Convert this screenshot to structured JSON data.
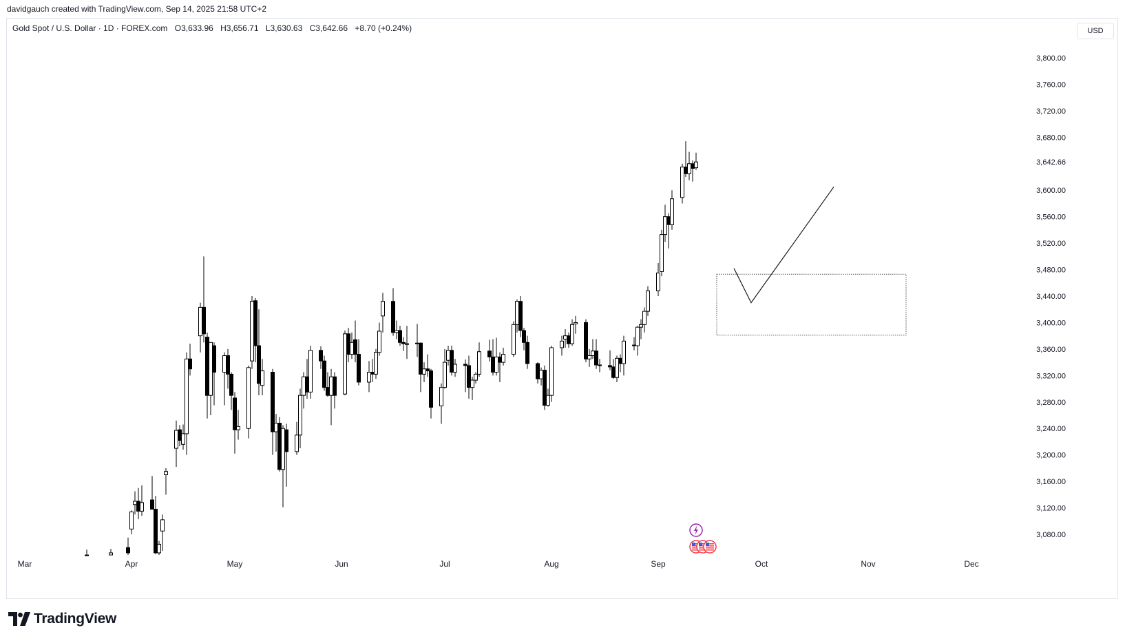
{
  "caption": "davidgauch created with TradingView.com, Sep 14, 2025 21:58 UTC+2",
  "legend": {
    "symbol": "Gold Spot / U.S. Dollar · 1D · FOREX.com",
    "open": "O3,633.96",
    "high": "H3,656.71",
    "low": "L3,630.63",
    "close": "C3,642.66",
    "change": "+8.70 (+0.24%)"
  },
  "currency_button": "USD",
  "logo_text": "TradingView",
  "icons": [
    "lightning-icon",
    "us-flag-icon"
  ],
  "colors": {
    "candle": "#000000",
    "grid_border": "#e0e3eb",
    "event_purple": "#9c27b0",
    "event_red": "#f23645"
  },
  "chart_data": {
    "type": "candlestick",
    "ylim": [
      3050,
      3830
    ],
    "y_ticks": [
      "3,080.00",
      "3,120.00",
      "3,160.00",
      "3,200.00",
      "3,240.00",
      "3,280.00",
      "3,320.00",
      "3,360.00",
      "3,400.00",
      "3,440.00",
      "3,480.00",
      "3,520.00",
      "3,560.00",
      "3,600.00",
      "3,680.00",
      "3,720.00",
      "3,760.00",
      "3,800.00"
    ],
    "y_tick_values": [
      3080,
      3120,
      3160,
      3200,
      3240,
      3280,
      3320,
      3360,
      3400,
      3440,
      3480,
      3520,
      3560,
      3600,
      3680,
      3720,
      3760,
      3800
    ],
    "last_price_label": "3,642.66",
    "last_price": 3642.66,
    "x_ticks": [
      {
        "label": "Mar",
        "date": "2025-03-01"
      },
      {
        "label": "Apr",
        "date": "2025-04-01"
      },
      {
        "label": "May",
        "date": "2025-05-01"
      },
      {
        "label": "Jun",
        "date": "2025-06-01"
      },
      {
        "label": "Jul",
        "date": "2025-07-01"
      },
      {
        "label": "Aug",
        "date": "2025-08-01"
      },
      {
        "label": "Sep",
        "date": "2025-09-01"
      },
      {
        "label": "Oct",
        "date": "2025-10-01"
      },
      {
        "label": "Nov",
        "date": "2025-11-01"
      },
      {
        "label": "Dec",
        "date": "2025-12-01"
      }
    ],
    "candles": [
      {
        "date": "2025-03-19",
        "o": 3033,
        "h": 3057,
        "l": 3030,
        "c": 3048
      },
      {
        "date": "2025-03-26",
        "o": 3028,
        "h": 3058,
        "l": 3025,
        "c": 3052
      },
      {
        "date": "2025-03-31",
        "o": 3060,
        "h": 3075,
        "l": 3045,
        "c": 3052
      },
      {
        "date": "2025-04-01",
        "o": 3088,
        "h": 3116,
        "l": 3080,
        "c": 3114
      },
      {
        "date": "2025-04-02",
        "o": 3125,
        "h": 3145,
        "l": 3110,
        "c": 3130
      },
      {
        "date": "2025-04-03",
        "o": 3130,
        "h": 3150,
        "l": 3103,
        "c": 3115
      },
      {
        "date": "2025-04-04",
        "o": 3115,
        "h": 3154,
        "l": 3108,
        "c": 3128
      },
      {
        "date": "2025-04-07",
        "o": 3132,
        "h": 3168,
        "l": 3120,
        "c": 3118
      },
      {
        "date": "2025-04-08",
        "o": 3118,
        "h": 3138,
        "l": 3050,
        "c": 3052
      },
      {
        "date": "2025-04-09",
        "o": 3052,
        "h": 3070,
        "l": 3040,
        "c": 3065
      },
      {
        "date": "2025-04-10",
        "o": 3085,
        "h": 3110,
        "l": 3055,
        "c": 3102
      },
      {
        "date": "2025-04-11",
        "o": 3170,
        "h": 3180,
        "l": 3140,
        "c": 3175
      },
      {
        "date": "2025-04-14",
        "o": 3210,
        "h": 3252,
        "l": 3182,
        "c": 3237
      },
      {
        "date": "2025-04-15",
        "o": 3238,
        "h": 3245,
        "l": 3213,
        "c": 3222
      },
      {
        "date": "2025-04-16",
        "o": 3216,
        "h": 3246,
        "l": 3208,
        "c": 3232
      },
      {
        "date": "2025-04-17",
        "o": 3232,
        "h": 3355,
        "l": 3200,
        "c": 3345
      },
      {
        "date": "2025-04-18",
        "o": 3345,
        "h": 3368,
        "l": 3320,
        "c": 3330
      },
      {
        "date": "2025-04-21",
        "o": 3380,
        "h": 3430,
        "l": 3355,
        "c": 3423
      },
      {
        "date": "2025-04-22",
        "o": 3423,
        "h": 3500,
        "l": 3370,
        "c": 3383
      },
      {
        "date": "2025-04-23",
        "o": 3378,
        "h": 3385,
        "l": 3255,
        "c": 3290
      },
      {
        "date": "2025-04-24",
        "o": 3290,
        "h": 3370,
        "l": 3260,
        "c": 3370
      },
      {
        "date": "2025-04-25",
        "o": 3365,
        "h": 3370,
        "l": 3275,
        "c": 3325
      },
      {
        "date": "2025-04-28",
        "o": 3325,
        "h": 3355,
        "l": 3275,
        "c": 3350
      },
      {
        "date": "2025-04-29",
        "o": 3350,
        "h": 3360,
        "l": 3300,
        "c": 3322
      },
      {
        "date": "2025-04-30",
        "o": 3322,
        "h": 3325,
        "l": 3268,
        "c": 3290
      },
      {
        "date": "2025-05-01",
        "o": 3286,
        "h": 3295,
        "l": 3202,
        "c": 3238
      },
      {
        "date": "2025-05-02",
        "o": 3238,
        "h": 3268,
        "l": 3223,
        "c": 3243
      },
      {
        "date": "2025-05-05",
        "o": 3240,
        "h": 3335,
        "l": 3225,
        "c": 3332
      },
      {
        "date": "2025-05-06",
        "o": 3342,
        "h": 3440,
        "l": 3330,
        "c": 3432
      },
      {
        "date": "2025-05-07",
        "o": 3433,
        "h": 3437,
        "l": 3340,
        "c": 3365
      },
      {
        "date": "2025-05-08",
        "o": 3365,
        "h": 3420,
        "l": 3290,
        "c": 3308
      },
      {
        "date": "2025-05-09",
        "o": 3305,
        "h": 3345,
        "l": 3290,
        "c": 3327
      },
      {
        "date": "2025-05-12",
        "o": 3325,
        "h": 3330,
        "l": 3200,
        "c": 3235
      },
      {
        "date": "2025-05-13",
        "o": 3235,
        "h": 3262,
        "l": 3205,
        "c": 3248
      },
      {
        "date": "2025-05-14",
        "o": 3248,
        "h": 3257,
        "l": 3175,
        "c": 3178
      },
      {
        "date": "2025-05-15",
        "o": 3178,
        "h": 3245,
        "l": 3121,
        "c": 3240
      },
      {
        "date": "2025-05-16",
        "o": 3238,
        "h": 3247,
        "l": 3152,
        "c": 3205
      },
      {
        "date": "2025-05-19",
        "o": 3205,
        "h": 3250,
        "l": 3200,
        "c": 3230
      },
      {
        "date": "2025-05-20",
        "o": 3230,
        "h": 3300,
        "l": 3210,
        "c": 3290
      },
      {
        "date": "2025-05-21",
        "o": 3290,
        "h": 3325,
        "l": 3270,
        "c": 3318
      },
      {
        "date": "2025-05-22",
        "o": 3318,
        "h": 3345,
        "l": 3285,
        "c": 3295
      },
      {
        "date": "2025-05-23",
        "o": 3295,
        "h": 3365,
        "l": 3285,
        "c": 3358
      },
      {
        "date": "2025-05-26",
        "o": 3358,
        "h": 3364,
        "l": 3330,
        "c": 3342
      },
      {
        "date": "2025-05-27",
        "o": 3342,
        "h": 3350,
        "l": 3297,
        "c": 3302
      },
      {
        "date": "2025-05-28",
        "o": 3302,
        "h": 3325,
        "l": 3288,
        "c": 3290
      },
      {
        "date": "2025-05-29",
        "o": 3290,
        "h": 3330,
        "l": 3245,
        "c": 3318
      },
      {
        "date": "2025-05-30",
        "o": 3318,
        "h": 3325,
        "l": 3270,
        "c": 3290
      },
      {
        "date": "2025-06-02",
        "o": 3292,
        "h": 3388,
        "l": 3290,
        "c": 3383
      },
      {
        "date": "2025-06-03",
        "o": 3383,
        "h": 3392,
        "l": 3340,
        "c": 3352
      },
      {
        "date": "2025-06-04",
        "o": 3352,
        "h": 3385,
        "l": 3345,
        "c": 3370
      },
      {
        "date": "2025-06-05",
        "o": 3374,
        "h": 3403,
        "l": 3340,
        "c": 3352
      },
      {
        "date": "2025-06-06",
        "o": 3352,
        "h": 3375,
        "l": 3305,
        "c": 3310
      },
      {
        "date": "2025-06-09",
        "o": 3310,
        "h": 3342,
        "l": 3295,
        "c": 3325
      },
      {
        "date": "2025-06-10",
        "o": 3325,
        "h": 3345,
        "l": 3310,
        "c": 3322
      },
      {
        "date": "2025-06-11",
        "o": 3322,
        "h": 3360,
        "l": 3315,
        "c": 3355
      },
      {
        "date": "2025-06-12",
        "o": 3355,
        "h": 3400,
        "l": 3350,
        "c": 3387
      },
      {
        "date": "2025-06-13",
        "o": 3410,
        "h": 3445,
        "l": 3385,
        "c": 3432
      },
      {
        "date": "2025-06-16",
        "o": 3432,
        "h": 3452,
        "l": 3380,
        "c": 3385
      },
      {
        "date": "2025-06-17",
        "o": 3385,
        "h": 3403,
        "l": 3375,
        "c": 3388
      },
      {
        "date": "2025-06-18",
        "o": 3388,
        "h": 3395,
        "l": 3365,
        "c": 3370
      },
      {
        "date": "2025-06-19",
        "o": 3370,
        "h": 3378,
        "l": 3357,
        "c": 3368
      },
      {
        "date": "2025-06-20",
        "o": 3368,
        "h": 3395,
        "l": 3345,
        "c": 3368
      },
      {
        "date": "2025-06-23",
        "o": 3368,
        "h": 3398,
        "l": 3348,
        "c": 3369
      },
      {
        "date": "2025-06-24",
        "o": 3369,
        "h": 3370,
        "l": 3295,
        "c": 3322
      },
      {
        "date": "2025-06-25",
        "o": 3322,
        "h": 3340,
        "l": 3310,
        "c": 3330
      },
      {
        "date": "2025-06-26",
        "o": 3330,
        "h": 3352,
        "l": 3318,
        "c": 3327
      },
      {
        "date": "2025-06-27",
        "o": 3327,
        "h": 3330,
        "l": 3255,
        "c": 3272
      },
      {
        "date": "2025-06-30",
        "o": 3274,
        "h": 3308,
        "l": 3247,
        "c": 3302
      },
      {
        "date": "2025-07-01",
        "o": 3302,
        "h": 3360,
        "l": 3300,
        "c": 3340
      },
      {
        "date": "2025-07-02",
        "o": 3343,
        "h": 3365,
        "l": 3335,
        "c": 3358
      },
      {
        "date": "2025-07-03",
        "o": 3358,
        "h": 3365,
        "l": 3320,
        "c": 3325
      },
      {
        "date": "2025-07-04",
        "o": 3325,
        "h": 3345,
        "l": 3318,
        "c": 3337
      },
      {
        "date": "2025-07-07",
        "o": 3337,
        "h": 3344,
        "l": 3295,
        "c": 3335
      },
      {
        "date": "2025-07-08",
        "o": 3335,
        "h": 3350,
        "l": 3285,
        "c": 3302
      },
      {
        "date": "2025-07-09",
        "o": 3302,
        "h": 3318,
        "l": 3283,
        "c": 3313
      },
      {
        "date": "2025-07-10",
        "o": 3313,
        "h": 3325,
        "l": 3308,
        "c": 3322
      },
      {
        "date": "2025-07-11",
        "o": 3322,
        "h": 3370,
        "l": 3318,
        "c": 3356
      },
      {
        "date": "2025-07-14",
        "o": 3357,
        "h": 3374,
        "l": 3341,
        "c": 3348
      },
      {
        "date": "2025-07-15",
        "o": 3348,
        "h": 3375,
        "l": 3320,
        "c": 3325
      },
      {
        "date": "2025-07-16",
        "o": 3325,
        "h": 3377,
        "l": 3320,
        "c": 3348
      },
      {
        "date": "2025-07-17",
        "o": 3348,
        "h": 3355,
        "l": 3310,
        "c": 3340
      },
      {
        "date": "2025-07-18",
        "o": 3340,
        "h": 3362,
        "l": 3335,
        "c": 3352
      },
      {
        "date": "2025-07-21",
        "o": 3352,
        "h": 3402,
        "l": 3348,
        "c": 3397
      },
      {
        "date": "2025-07-22",
        "o": 3397,
        "h": 3435,
        "l": 3385,
        "c": 3432
      },
      {
        "date": "2025-07-23",
        "o": 3432,
        "h": 3440,
        "l": 3378,
        "c": 3388
      },
      {
        "date": "2025-07-24",
        "o": 3388,
        "h": 3392,
        "l": 3358,
        "c": 3370
      },
      {
        "date": "2025-07-25",
        "o": 3370,
        "h": 3380,
        "l": 3330,
        "c": 3338
      },
      {
        "date": "2025-07-28",
        "o": 3338,
        "h": 3340,
        "l": 3308,
        "c": 3315
      },
      {
        "date": "2025-07-29",
        "o": 3315,
        "h": 3332,
        "l": 3305,
        "c": 3328
      },
      {
        "date": "2025-07-30",
        "o": 3328,
        "h": 3335,
        "l": 3268,
        "c": 3275
      },
      {
        "date": "2025-07-31",
        "o": 3275,
        "h": 3300,
        "l": 3273,
        "c": 3290
      },
      {
        "date": "2025-08-01",
        "o": 3290,
        "h": 3365,
        "l": 3280,
        "c": 3362
      },
      {
        "date": "2025-08-04",
        "o": 3362,
        "h": 3380,
        "l": 3350,
        "c": 3372
      },
      {
        "date": "2025-08-05",
        "o": 3375,
        "h": 3390,
        "l": 3362,
        "c": 3380
      },
      {
        "date": "2025-08-06",
        "o": 3380,
        "h": 3385,
        "l": 3362,
        "c": 3368
      },
      {
        "date": "2025-08-07",
        "o": 3368,
        "h": 3405,
        "l": 3365,
        "c": 3397
      },
      {
        "date": "2025-08-08",
        "o": 3398,
        "h": 3410,
        "l": 3383,
        "c": 3400
      },
      {
        "date": "2025-08-11",
        "o": 3400,
        "h": 3405,
        "l": 3340,
        "c": 3345
      },
      {
        "date": "2025-08-12",
        "o": 3345,
        "h": 3360,
        "l": 3333,
        "c": 3350
      },
      {
        "date": "2025-08-13",
        "o": 3350,
        "h": 3375,
        "l": 3345,
        "c": 3357
      },
      {
        "date": "2025-08-14",
        "o": 3357,
        "h": 3375,
        "l": 3330,
        "c": 3336
      },
      {
        "date": "2025-08-15",
        "o": 3336,
        "h": 3345,
        "l": 3325,
        "c": 3335
      },
      {
        "date": "2025-08-18",
        "o": 3335,
        "h": 3358,
        "l": 3328,
        "c": 3333
      },
      {
        "date": "2025-08-19",
        "o": 3333,
        "h": 3345,
        "l": 3315,
        "c": 3317
      },
      {
        "date": "2025-08-20",
        "o": 3317,
        "h": 3350,
        "l": 3310,
        "c": 3346
      },
      {
        "date": "2025-08-21",
        "o": 3346,
        "h": 3352,
        "l": 3325,
        "c": 3338
      },
      {
        "date": "2025-08-22",
        "o": 3338,
        "h": 3380,
        "l": 3320,
        "c": 3372
      },
      {
        "date": "2025-08-25",
        "o": 3366,
        "h": 3378,
        "l": 3358,
        "c": 3365
      },
      {
        "date": "2025-08-26",
        "o": 3365,
        "h": 3395,
        "l": 3350,
        "c": 3393
      },
      {
        "date": "2025-08-27",
        "o": 3393,
        "h": 3405,
        "l": 3375,
        "c": 3397
      },
      {
        "date": "2025-08-28",
        "o": 3397,
        "h": 3423,
        "l": 3385,
        "c": 3417
      },
      {
        "date": "2025-08-29",
        "o": 3417,
        "h": 3455,
        "l": 3410,
        "c": 3448
      },
      {
        "date": "2025-09-01",
        "o": 3448,
        "h": 3490,
        "l": 3440,
        "c": 3475
      },
      {
        "date": "2025-09-02",
        "o": 3477,
        "h": 3540,
        "l": 3470,
        "c": 3533
      },
      {
        "date": "2025-09-03",
        "o": 3533,
        "h": 3578,
        "l": 3522,
        "c": 3560
      },
      {
        "date": "2025-09-04",
        "o": 3560,
        "h": 3565,
        "l": 3512,
        "c": 3548
      },
      {
        "date": "2025-09-05",
        "o": 3548,
        "h": 3600,
        "l": 3540,
        "c": 3587
      },
      {
        "date": "2025-09-08",
        "o": 3589,
        "h": 3640,
        "l": 3580,
        "c": 3635
      },
      {
        "date": "2025-09-09",
        "o": 3635,
        "h": 3674,
        "l": 3620,
        "c": 3625
      },
      {
        "date": "2025-09-10",
        "o": 3625,
        "h": 3658,
        "l": 3615,
        "c": 3640
      },
      {
        "date": "2025-09-11",
        "o": 3640,
        "h": 3645,
        "l": 3613,
        "c": 3633
      },
      {
        "date": "2025-09-12",
        "o": 3633.96,
        "h": 3656.71,
        "l": 3630.63,
        "c": 3642.66
      }
    ],
    "drawings": [
      {
        "type": "rectangle",
        "style": "dotted",
        "from_date": "2025-09-18",
        "to_date": "2025-11-12",
        "y_top": 3473,
        "y_bottom": 3381
      },
      {
        "type": "polyline",
        "points": [
          {
            "date": "2025-09-23",
            "y": 3482
          },
          {
            "date": "2025-09-28",
            "y": 3430
          },
          {
            "date": "2025-10-22",
            "y": 3605
          }
        ]
      }
    ],
    "events": [
      {
        "date": "2025-09-12",
        "icon": "lightning-icon"
      },
      {
        "date": "2025-09-12",
        "icon": "us-flag-icon"
      },
      {
        "date": "2025-09-14",
        "icon": "us-flag-icon"
      },
      {
        "date": "2025-09-16",
        "icon": "us-flag-icon"
      }
    ],
    "grid": false,
    "legend_position": "top-left"
  }
}
